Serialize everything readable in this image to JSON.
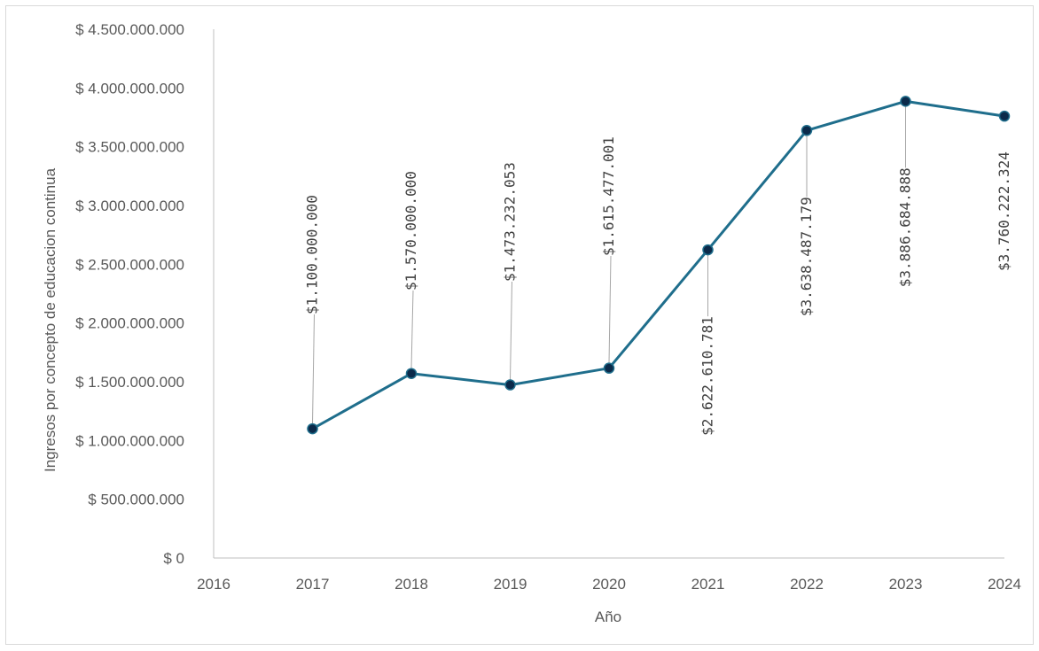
{
  "chart_data": {
    "type": "line",
    "xlabel": "Año",
    "ylabel": "Ingresos por concepto de educacion continua",
    "x_ticks": [
      "2016",
      "2017",
      "2018",
      "2019",
      "2020",
      "2021",
      "2022",
      "2023",
      "2024"
    ],
    "y_ticks": [
      "$ 0",
      "$ 500.000.000",
      "$ 1.000.000.000",
      "$ 1.500.000.000",
      "$ 2.000.000.000",
      "$ 2.500.000.000",
      "$ 3.000.000.000",
      "$ 3.500.000.000",
      "$ 4.000.000.000",
      "$ 4.500.000.000"
    ],
    "xlim": [
      2016,
      2024
    ],
    "ylim": [
      0,
      4500000000
    ],
    "y_tick_step": 500000000,
    "grid": false,
    "legend": "none",
    "series": [
      {
        "x": [
          2017,
          2018,
          2019,
          2020,
          2021,
          2022,
          2023,
          2024
        ],
        "values": [
          1100000000,
          1570000000,
          1473232053,
          1615477001,
          2622610781,
          3638487179,
          3886684888,
          3760222324
        ],
        "labels": [
          "$1.100.000.000",
          "$1.570.000.000",
          "$1.473.232.053",
          "$1.615.477.001",
          "$2.622.610.781",
          "$3.638.487.179",
          "$3.886.684.888",
          "$3.760.222.324"
        ],
        "label_position": [
          "above",
          "above",
          "above",
          "above",
          "below",
          "below",
          "below",
          "above"
        ]
      }
    ],
    "colors": {
      "line": "#1f6e8c",
      "marker": "#0b2a4a",
      "marker_stroke": "#1f6e8c"
    }
  }
}
